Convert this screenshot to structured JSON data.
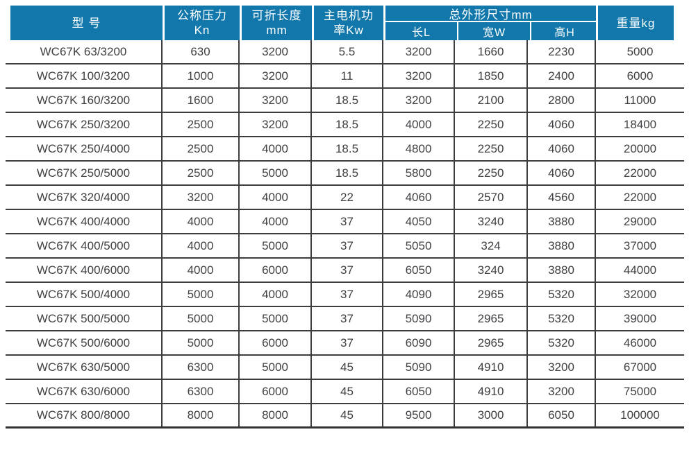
{
  "table": {
    "header": {
      "model": "型 号",
      "pressure_line1": "公称压力",
      "pressure_line2": "Kn",
      "length_line1": "可折长度",
      "length_line2": "mm",
      "power_line1": "主电机功",
      "power_line2": "率Kw",
      "dims_group": "总外形尺寸mm",
      "dim_l": "长L",
      "dim_w": "宽W",
      "dim_h": "高H",
      "weight": "重量kg"
    },
    "columns": [
      "model",
      "pressure",
      "length",
      "power",
      "dim-l",
      "dim-w",
      "dim-h",
      "weight"
    ],
    "rows": [
      [
        "WC67K 63/3200",
        "630",
        "3200",
        "5.5",
        "3200",
        "1660",
        "2230",
        "5000"
      ],
      [
        "WC67K 100/3200",
        "1000",
        "3200",
        "11",
        "3200",
        "1850",
        "2400",
        "6000"
      ],
      [
        "WC67K 160/3200",
        "1600",
        "3200",
        "18.5",
        "3200",
        "2100",
        "2800",
        "11000"
      ],
      [
        "WC67K 250/3200",
        "2500",
        "3200",
        "18.5",
        "4000",
        "2250",
        "4060",
        "18400"
      ],
      [
        "WC67K 250/4000",
        "2500",
        "4000",
        "18.5",
        "4800",
        "2250",
        "4060",
        "20000"
      ],
      [
        "WC67K 250/5000",
        "2500",
        "5000",
        "18.5",
        "5800",
        "2250",
        "4060",
        "22000"
      ],
      [
        "WC67K 320/4000",
        "3200",
        "4000",
        "22",
        "4060",
        "2570",
        "4560",
        "22000"
      ],
      [
        "WC67K 400/4000",
        "4000",
        "4000",
        "37",
        "4050",
        "3240",
        "3880",
        "29000"
      ],
      [
        "WC67K 400/5000",
        "4000",
        "5000",
        "37",
        "5050",
        "324",
        "3880",
        "37000"
      ],
      [
        "WC67K 400/6000",
        "4000",
        "6000",
        "37",
        "6050",
        "3240",
        "3880",
        "44000"
      ],
      [
        "WC67K 500/4000",
        "5000",
        "4000",
        "37",
        "4090",
        "2965",
        "5320",
        "32000"
      ],
      [
        "WC67K 500/5000",
        "5000",
        "5000",
        "37",
        "5090",
        "2965",
        "5320",
        "39000"
      ],
      [
        "WC67K 500/6000",
        "5000",
        "6000",
        "37",
        "6090",
        "2965",
        "5320",
        "46000"
      ],
      [
        "WC67K 630/5000",
        "6300",
        "5000",
        "45",
        "5090",
        "4910",
        "3200",
        "67000"
      ],
      [
        "WC67K 630/6000",
        "6300",
        "6000",
        "45",
        "6050",
        "4910",
        "3200",
        "75000"
      ],
      [
        "WC67K 800/8000",
        "8000",
        "8000",
        "45",
        "9500",
        "3000",
        "6050",
        "100000"
      ]
    ],
    "colors": {
      "header_bg": "#1278ac",
      "header_text": "#ffffff",
      "rule": "#3d3d40",
      "text": "#3f4043"
    }
  }
}
